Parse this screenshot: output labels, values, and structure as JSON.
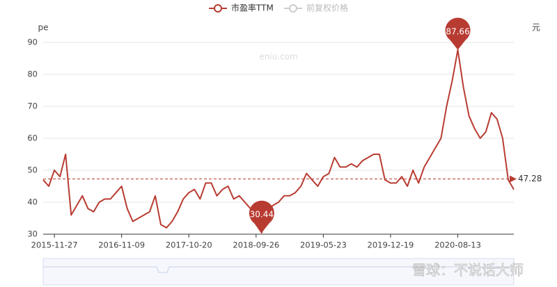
{
  "chart_data": {
    "type": "line",
    "y_axis_label": "pe",
    "y2_axis_label": "元",
    "watermark": "eniu.com",
    "credit": "雪球：不说话大师",
    "inactive_legend": [
      "前复权价格"
    ],
    "ylim": [
      30,
      90
    ],
    "yticks": [
      30,
      40,
      50,
      60,
      70,
      80,
      90
    ],
    "grid": true,
    "average": 47.28,
    "categories": [
      null,
      null,
      "2015-11-27",
      null,
      null,
      null,
      null,
      null,
      null,
      null,
      null,
      null,
      null,
      null,
      "2016-11-09",
      null,
      null,
      null,
      null,
      null,
      null,
      null,
      null,
      null,
      null,
      null,
      "2017-10-20",
      null,
      null,
      null,
      null,
      null,
      null,
      null,
      null,
      null,
      null,
      null,
      "2018-09-26",
      null,
      null,
      null,
      null,
      null,
      null,
      null,
      null,
      null,
      null,
      null,
      "2019-05-23",
      null,
      null,
      null,
      null,
      null,
      null,
      null,
      null,
      null,
      null,
      null,
      "2019-12-19",
      null,
      null,
      null,
      null,
      null,
      null,
      null,
      null,
      null,
      null,
      null,
      "2020-08-13",
      null,
      null,
      null,
      null,
      null,
      null,
      null,
      null,
      null,
      null
    ],
    "series": [
      {
        "name": "市盈率TTM",
        "color": "#b83b31",
        "values": [
          47,
          45,
          50,
          48,
          55,
          36,
          39,
          42,
          38,
          37,
          40,
          41,
          41,
          43,
          45,
          38,
          34,
          35,
          36,
          37,
          42,
          33,
          32,
          34,
          37,
          41,
          43,
          44,
          41,
          46,
          46,
          42,
          44,
          45,
          41,
          42,
          40,
          38,
          33,
          30.44,
          37,
          39,
          40,
          42,
          42,
          43,
          45,
          49,
          47,
          45,
          48,
          49,
          54,
          51,
          51,
          52,
          51,
          53,
          54,
          55,
          55,
          47,
          46,
          46,
          48,
          45,
          50,
          46,
          51,
          54,
          57,
          60,
          70,
          78,
          87.66,
          76,
          67,
          63,
          60,
          62,
          68,
          66,
          60,
          47,
          44
        ]
      }
    ]
  }
}
